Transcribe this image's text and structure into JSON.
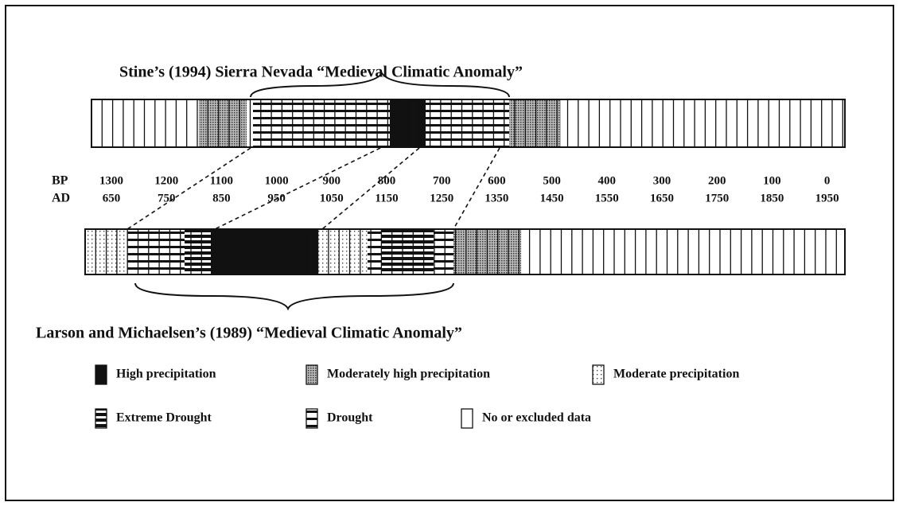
{
  "title_top": "Stine’s (1994) Sierra Nevada “Medieval Climatic Anomaly”",
  "title_bottom": "Larson and Michaelsen’s (1989)  “Medieval Climatic Anomaly”",
  "axis": {
    "bp_label": "BP",
    "ad_label": "AD",
    "bp": [
      1300,
      1200,
      1100,
      1000,
      900,
      800,
      700,
      600,
      500,
      400,
      300,
      200,
      100,
      0
    ],
    "ad": [
      650,
      750,
      850,
      950,
      1050,
      1150,
      1250,
      1350,
      1450,
      1550,
      1650,
      1750,
      1850,
      1950
    ]
  },
  "legend": [
    "High precipitation",
    "Moderately high precipitation",
    "Moderate precipitation",
    "Extreme Drought",
    "Drought",
    "No or excluded data"
  ]
}
